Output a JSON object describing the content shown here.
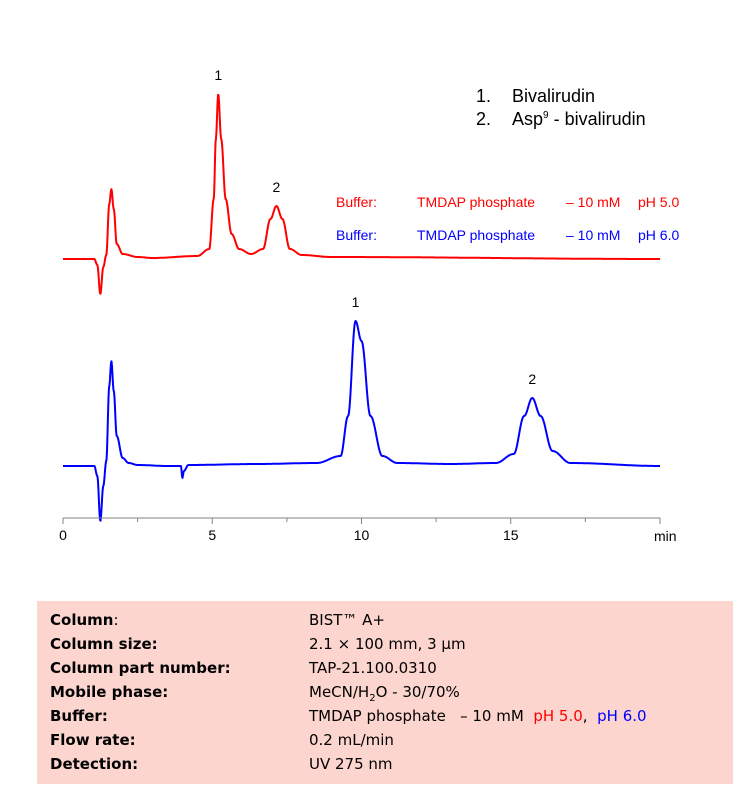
{
  "chart_data": {
    "type": "line",
    "xlabel": "min",
    "xlim": [
      0,
      20
    ],
    "x_ticks": [
      0,
      5,
      10,
      15
    ],
    "x_minor_ticks": [
      2.5,
      7.5,
      12.5,
      17.5
    ],
    "series": [
      {
        "color": "#ff0000",
        "baseline": 0,
        "points": [
          [
            0,
            0
          ],
          [
            1.05,
            0
          ],
          [
            1.15,
            -0.6
          ],
          [
            1.25,
            -3.5
          ],
          [
            1.35,
            -0.8
          ],
          [
            1.45,
            0.4
          ],
          [
            1.55,
            5.5
          ],
          [
            1.62,
            7.0
          ],
          [
            1.7,
            5.0
          ],
          [
            1.8,
            1.5
          ],
          [
            2.0,
            0.5
          ],
          [
            2.5,
            0.2
          ],
          [
            3.0,
            0.1
          ],
          [
            4.5,
            0.3
          ],
          [
            4.9,
            1.0
          ],
          [
            5.05,
            6.0
          ],
          [
            5.12,
            12.0
          ],
          [
            5.2,
            16.5
          ],
          [
            5.3,
            12.0
          ],
          [
            5.45,
            6.0
          ],
          [
            5.65,
            2.5
          ],
          [
            5.9,
            1.0
          ],
          [
            6.3,
            0.5
          ],
          [
            6.7,
            1.0
          ],
          [
            6.95,
            4.0
          ],
          [
            7.15,
            5.3
          ],
          [
            7.35,
            4.0
          ],
          [
            7.6,
            1.0
          ],
          [
            8.0,
            0.4
          ],
          [
            9.0,
            0.2
          ],
          [
            20.0,
            0.0
          ]
        ]
      },
      {
        "color": "#0000ff",
        "baseline": 0,
        "points": [
          [
            0,
            0
          ],
          [
            1.05,
            0
          ],
          [
            1.15,
            -1.0
          ],
          [
            1.25,
            -5.5
          ],
          [
            1.35,
            -2.0
          ],
          [
            1.45,
            0.5
          ],
          [
            1.55,
            8.0
          ],
          [
            1.62,
            10.5
          ],
          [
            1.7,
            7.5
          ],
          [
            1.8,
            3.0
          ],
          [
            2.0,
            0.8
          ],
          [
            2.2,
            0.3
          ],
          [
            2.5,
            0.1
          ],
          [
            3.5,
            0
          ],
          [
            3.95,
            0
          ],
          [
            4.0,
            -1.2
          ],
          [
            4.05,
            -0.5
          ],
          [
            4.2,
            0.1
          ],
          [
            6.5,
            0.2
          ],
          [
            8.5,
            0.3
          ],
          [
            9.3,
            1.0
          ],
          [
            9.55,
            5.0
          ],
          [
            9.8,
            14.5
          ],
          [
            10.0,
            12.5
          ],
          [
            10.3,
            5.0
          ],
          [
            10.7,
            1.0
          ],
          [
            11.2,
            0.3
          ],
          [
            13.0,
            0.2
          ],
          [
            14.5,
            0.3
          ],
          [
            15.1,
            1.2
          ],
          [
            15.45,
            5.0
          ],
          [
            15.72,
            6.8
          ],
          [
            16.0,
            5.0
          ],
          [
            16.4,
            1.5
          ],
          [
            17.0,
            0.3
          ],
          [
            20.0,
            0.0
          ]
        ]
      }
    ],
    "peak_labels": [
      {
        "label": "1",
        "x": 5.2,
        "series": 0
      },
      {
        "label": "2",
        "x": 7.15,
        "series": 0
      },
      {
        "label": "1",
        "x": 9.8,
        "series": 1
      },
      {
        "label": "2",
        "x": 15.72,
        "series": 1
      }
    ],
    "tick_labels": [
      "0",
      "5",
      "10",
      "15"
    ],
    "legend": [
      {
        "num": "1.",
        "name": "Bivalirudin"
      },
      {
        "num": "2.",
        "name_pre": "Asp",
        "name_sup": "9",
        "name_post": " - bivalirudin"
      }
    ],
    "buffer_rows": [
      {
        "color": "#ff0000",
        "label": "Buffer:",
        "buffer": "TMDAP phosphate",
        "conc": "– 10 mM",
        "ph": "pH 5.0"
      },
      {
        "color": "#0000ff",
        "label": "Buffer:",
        "buffer": "TMDAP phosphate",
        "conc": "– 10 mM",
        "ph": "pH 6.0"
      }
    ]
  },
  "info": {
    "column_label": "Column",
    "column_colon": ":",
    "column_value": "BIST™ A+",
    "size_label": "Column size:",
    "size_value": "2.1 × 100 mm, 3 µm",
    "part_label": "Column part number:",
    "part_value": "TAP-21.100.0310",
    "mobile_label": "Mobile phase:",
    "mobile_pre": "MeCN/H",
    "mobile_sub": "2",
    "mobile_post": "O - 30/70%",
    "buffer_label": "Buffer:",
    "buffer_value": "TMDAP phosphate   – 10 mM",
    "buffer_ph1": "pH 5.0",
    "buffer_sep": ",",
    "buffer_ph2": "pH 6.0",
    "flow_label": "Flow rate:",
    "flow_value": "0.2 mL/min",
    "detection_label": "Detection:",
    "detection_value": "UV 275 nm"
  }
}
